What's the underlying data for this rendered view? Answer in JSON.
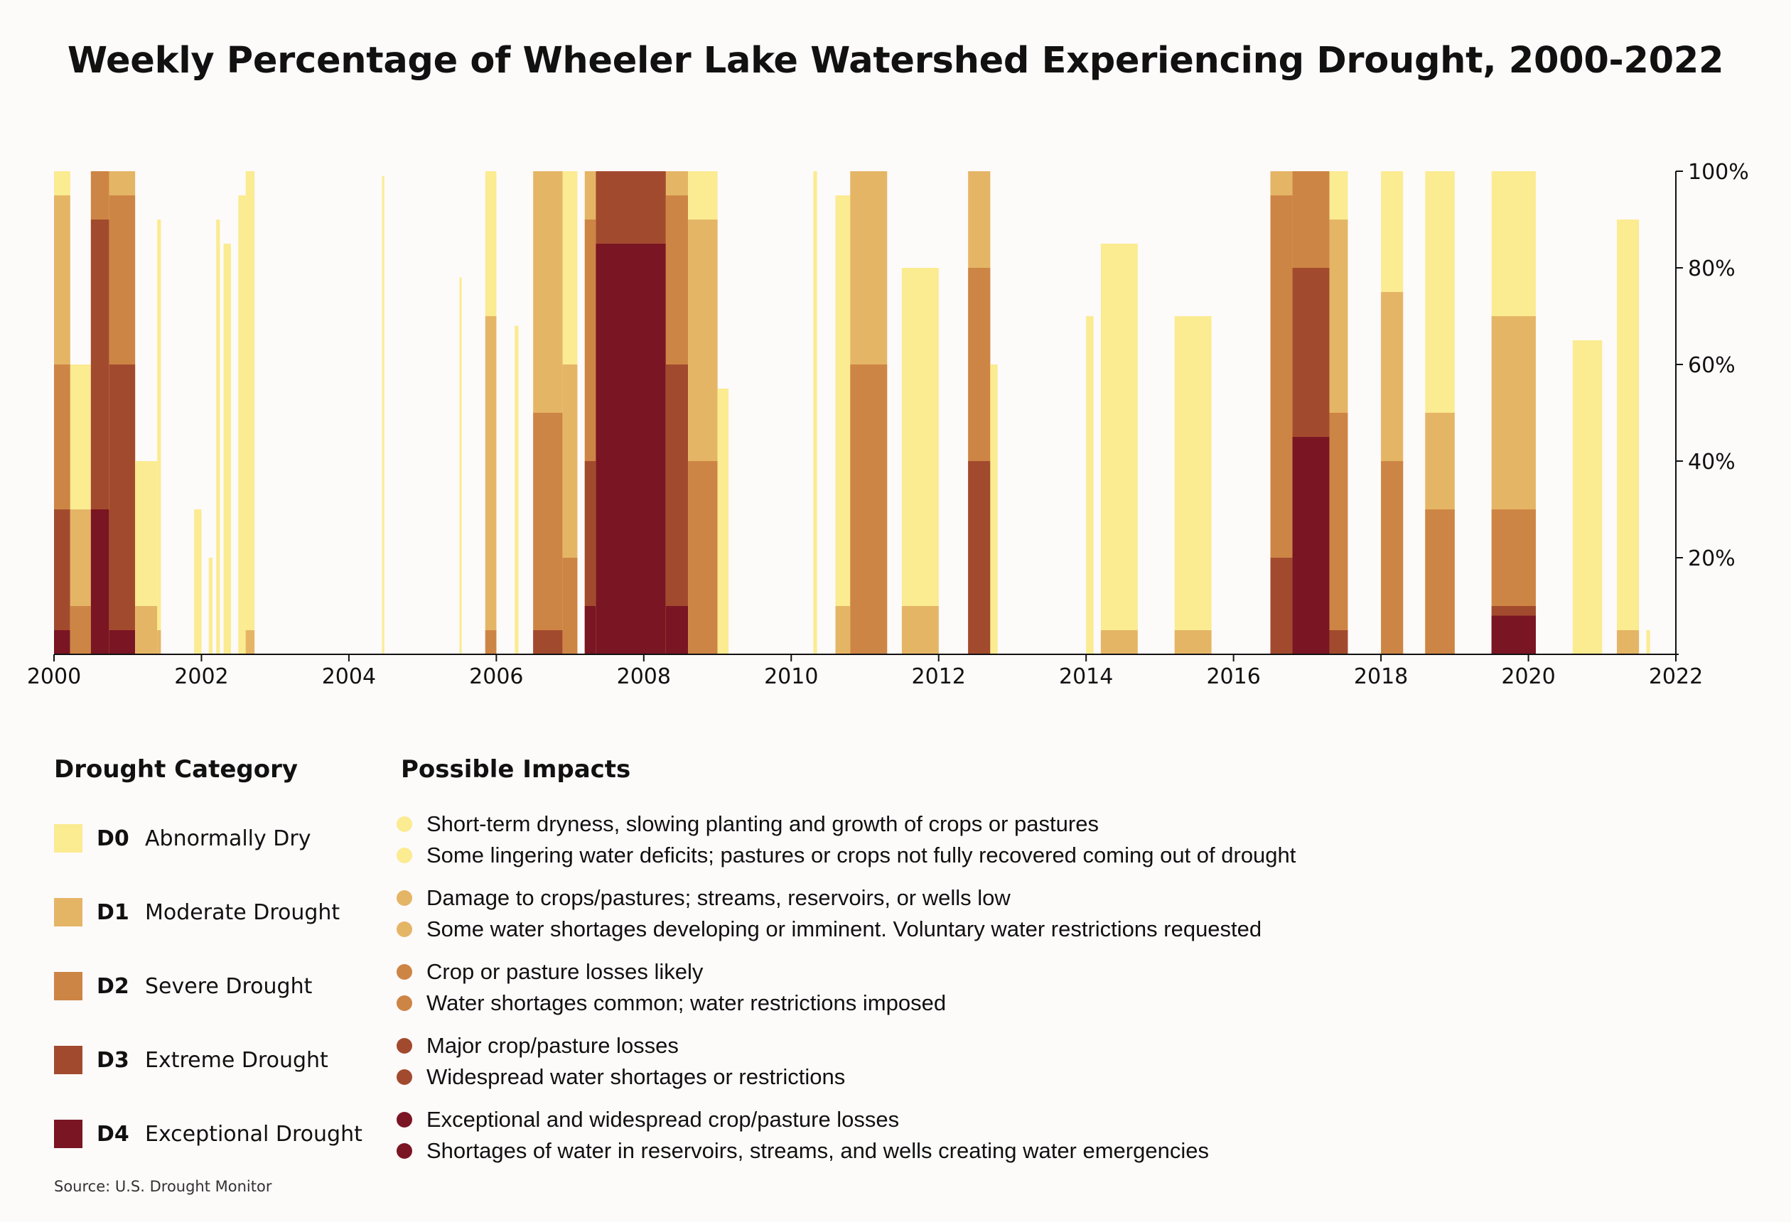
{
  "title": "Weekly Percentage of Wheeler Lake Watershed Experiencing Drought, 2000-2022",
  "colors": {
    "D0": "#fbeb91",
    "D1": "#e5b566",
    "D2": "#cd8545",
    "D3": "#a24a2e",
    "D4": "#7a1523"
  },
  "chart_data": {
    "type": "area",
    "xlabel": "",
    "ylabel": "",
    "xlim": [
      2000,
      2022
    ],
    "ylim": [
      0,
      100
    ],
    "x_ticks": [
      "2000",
      "2002",
      "2004",
      "2006",
      "2008",
      "2010",
      "2012",
      "2014",
      "2016",
      "2018",
      "2020",
      "2022"
    ],
    "y_ticks": [
      "20%",
      "40%",
      "60%",
      "80%",
      "100%"
    ],
    "y_axis_side": "right",
    "series_order": [
      "D0",
      "D1",
      "D2",
      "D3",
      "D4"
    ],
    "episodes": [
      {
        "start": 2000.0,
        "end": 2000.22,
        "D0": 100,
        "D1": 95,
        "D2": 60,
        "D3": 30,
        "D4": 5
      },
      {
        "start": 2000.22,
        "end": 2000.5,
        "D0": 60,
        "D1": 30,
        "D2": 10,
        "D3": 0,
        "D4": 0
      },
      {
        "start": 2000.5,
        "end": 2000.75,
        "D0": 100,
        "D1": 100,
        "D2": 100,
        "D3": 90,
        "D4": 30
      },
      {
        "start": 2000.75,
        "end": 2001.1,
        "D0": 100,
        "D1": 100,
        "D2": 95,
        "D3": 60,
        "D4": 5
      },
      {
        "start": 2001.1,
        "end": 2001.4,
        "D0": 40,
        "D1": 10,
        "D2": 0,
        "D3": 0,
        "D4": 0
      },
      {
        "start": 2001.4,
        "end": 2001.45,
        "D0": 90,
        "D1": 5,
        "D2": 0,
        "D3": 0,
        "D4": 0
      },
      {
        "start": 2001.9,
        "end": 2002.0,
        "D0": 30,
        "D1": 0,
        "D2": 0,
        "D3": 0,
        "D4": 0
      },
      {
        "start": 2002.1,
        "end": 2002.15,
        "D0": 20,
        "D1": 0,
        "D2": 0,
        "D3": 0,
        "D4": 0
      },
      {
        "start": 2002.2,
        "end": 2002.25,
        "D0": 90,
        "D1": 0,
        "D2": 0,
        "D3": 0,
        "D4": 0
      },
      {
        "start": 2002.3,
        "end": 2002.4,
        "D0": 85,
        "D1": 0,
        "D2": 0,
        "D3": 0,
        "D4": 0
      },
      {
        "start": 2002.5,
        "end": 2002.6,
        "D0": 95,
        "D1": 0,
        "D2": 0,
        "D3": 0,
        "D4": 0
      },
      {
        "start": 2002.6,
        "end": 2002.72,
        "D0": 100,
        "D1": 5,
        "D2": 0,
        "D3": 0,
        "D4": 0
      },
      {
        "start": 2004.45,
        "end": 2004.48,
        "D0": 99,
        "D1": 0,
        "D2": 0,
        "D3": 0,
        "D4": 0
      },
      {
        "start": 2005.5,
        "end": 2005.53,
        "D0": 78,
        "D1": 0,
        "D2": 0,
        "D3": 0,
        "D4": 0
      },
      {
        "start": 2005.85,
        "end": 2006.0,
        "D0": 100,
        "D1": 70,
        "D2": 5,
        "D3": 0,
        "D4": 0
      },
      {
        "start": 2006.25,
        "end": 2006.3,
        "D0": 68,
        "D1": 0,
        "D2": 0,
        "D3": 0,
        "D4": 0
      },
      {
        "start": 2006.5,
        "end": 2006.9,
        "D0": 100,
        "D1": 100,
        "D2": 50,
        "D3": 5,
        "D4": 0
      },
      {
        "start": 2006.9,
        "end": 2007.1,
        "D0": 100,
        "D1": 60,
        "D2": 20,
        "D3": 0,
        "D4": 0
      },
      {
        "start": 2007.2,
        "end": 2007.35,
        "D0": 100,
        "D1": 100,
        "D2": 90,
        "D3": 40,
        "D4": 10
      },
      {
        "start": 2007.35,
        "end": 2008.3,
        "D0": 100,
        "D1": 100,
        "D2": 100,
        "D3": 100,
        "D4": 85
      },
      {
        "start": 2008.3,
        "end": 2008.6,
        "D0": 100,
        "D1": 100,
        "D2": 95,
        "D3": 60,
        "D4": 10
      },
      {
        "start": 2008.6,
        "end": 2009.0,
        "D0": 100,
        "D1": 90,
        "D2": 40,
        "D3": 0,
        "D4": 0
      },
      {
        "start": 2009.0,
        "end": 2009.15,
        "D0": 55,
        "D1": 0,
        "D2": 0,
        "D3": 0,
        "D4": 0
      },
      {
        "start": 2010.3,
        "end": 2010.35,
        "D0": 100,
        "D1": 0,
        "D2": 0,
        "D3": 0,
        "D4": 0
      },
      {
        "start": 2010.6,
        "end": 2010.8,
        "D0": 95,
        "D1": 10,
        "D2": 0,
        "D3": 0,
        "D4": 0
      },
      {
        "start": 2010.8,
        "end": 2011.3,
        "D0": 100,
        "D1": 100,
        "D2": 60,
        "D3": 0,
        "D4": 0
      },
      {
        "start": 2011.5,
        "end": 2012.0,
        "D0": 80,
        "D1": 10,
        "D2": 0,
        "D3": 0,
        "D4": 0
      },
      {
        "start": 2012.4,
        "end": 2012.7,
        "D0": 100,
        "D1": 100,
        "D2": 80,
        "D3": 40,
        "D4": 0
      },
      {
        "start": 2012.7,
        "end": 2012.8,
        "D0": 60,
        "D1": 0,
        "D2": 0,
        "D3": 0,
        "D4": 0
      },
      {
        "start": 2014.0,
        "end": 2014.1,
        "D0": 70,
        "D1": 0,
        "D2": 0,
        "D3": 0,
        "D4": 0
      },
      {
        "start": 2014.2,
        "end": 2014.7,
        "D0": 85,
        "D1": 5,
        "D2": 0,
        "D3": 0,
        "D4": 0
      },
      {
        "start": 2015.2,
        "end": 2015.7,
        "D0": 70,
        "D1": 5,
        "D2": 0,
        "D3": 0,
        "D4": 0
      },
      {
        "start": 2016.5,
        "end": 2016.8,
        "D0": 100,
        "D1": 100,
        "D2": 95,
        "D3": 20,
        "D4": 0
      },
      {
        "start": 2016.8,
        "end": 2017.3,
        "D0": 100,
        "D1": 100,
        "D2": 100,
        "D3": 80,
        "D4": 45
      },
      {
        "start": 2017.3,
        "end": 2017.55,
        "D0": 100,
        "D1": 90,
        "D2": 50,
        "D3": 5,
        "D4": 0
      },
      {
        "start": 2018.0,
        "end": 2018.3,
        "D0": 100,
        "D1": 75,
        "D2": 40,
        "D3": 0,
        "D4": 0
      },
      {
        "start": 2018.6,
        "end": 2019.0,
        "D0": 100,
        "D1": 50,
        "D2": 30,
        "D3": 0,
        "D4": 0
      },
      {
        "start": 2019.5,
        "end": 2020.1,
        "D0": 100,
        "D1": 70,
        "D2": 30,
        "D3": 10,
        "D4": 8
      },
      {
        "start": 2020.6,
        "end": 2021.0,
        "D0": 65,
        "D1": 0,
        "D2": 0,
        "D3": 0,
        "D4": 0
      },
      {
        "start": 2021.2,
        "end": 2021.5,
        "D0": 90,
        "D1": 5,
        "D2": 0,
        "D3": 0,
        "D4": 0
      },
      {
        "start": 2021.6,
        "end": 2021.65,
        "D0": 5,
        "D1": 0,
        "D2": 0,
        "D3": 0,
        "D4": 0
      }
    ]
  },
  "legend": {
    "category_heading": "Drought Category",
    "impacts_heading": "Possible Impacts",
    "categories": [
      {
        "code": "D0",
        "label": "Abnormally Dry",
        "color": "#fbeb91"
      },
      {
        "code": "D1",
        "label": "Moderate Drought",
        "color": "#e5b566"
      },
      {
        "code": "D2",
        "label": "Severe Drought",
        "color": "#cd8545"
      },
      {
        "code": "D3",
        "label": "Extreme Drought",
        "color": "#a24a2e"
      },
      {
        "code": "D4",
        "label": "Exceptional Drought",
        "color": "#7a1523"
      }
    ],
    "impacts": [
      {
        "color": "#fbeb91",
        "lines": [
          "Short-term dryness, slowing planting and growth of crops or pastures",
          "Some lingering water deficits; pastures or crops not fully recovered coming out of drought"
        ]
      },
      {
        "color": "#e5b566",
        "lines": [
          "Damage to crops/pastures; streams, reservoirs, or wells low",
          "Some water shortages developing or imminent. Voluntary water restrictions requested"
        ]
      },
      {
        "color": "#cd8545",
        "lines": [
          "Crop or pasture losses likely",
          "Water shortages common; water restrictions imposed"
        ]
      },
      {
        "color": "#a24a2e",
        "lines": [
          "Major crop/pasture losses",
          "Widespread water shortages or restrictions"
        ]
      },
      {
        "color": "#7a1523",
        "lines": [
          "Exceptional and widespread crop/pasture losses",
          "Shortages of water in reservoirs, streams, and wells creating water emergencies"
        ]
      }
    ]
  },
  "source": "Source: U.S. Drought Monitor"
}
